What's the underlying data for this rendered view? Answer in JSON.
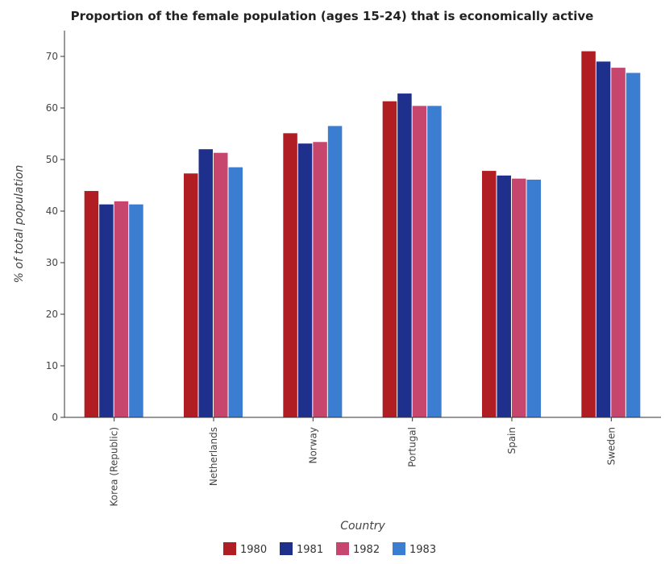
{
  "chart_data": {
    "type": "bar",
    "title": "Proportion of the female population (ages 15-24) that is economically active",
    "xlabel": "Country",
    "ylabel": "% of total population",
    "ylim": [
      0,
      75
    ],
    "yticks": [
      "0",
      "10",
      "20",
      "30",
      "40",
      "50",
      "60",
      "70"
    ],
    "categories": [
      "Korea (Republic)",
      "Netherlands",
      "Norway",
      "Portugal",
      "Spain",
      "Sweden"
    ],
    "series": [
      {
        "name": "1980",
        "color": "#b01e24",
        "values": [
          43.9,
          47.3,
          55.1,
          61.3,
          47.8,
          71.0
        ]
      },
      {
        "name": "1981",
        "color": "#1e2f8c",
        "values": [
          41.3,
          52.0,
          53.1,
          62.8,
          46.9,
          69.0
        ]
      },
      {
        "name": "1982",
        "color": "#c6466e",
        "values": [
          41.9,
          51.3,
          53.4,
          60.4,
          46.3,
          67.8
        ]
      },
      {
        "name": "1983",
        "color": "#3b7dd1",
        "values": [
          41.3,
          48.5,
          56.5,
          60.4,
          46.1,
          66.8
        ]
      }
    ],
    "grid": false,
    "legend_position": "bottom"
  }
}
